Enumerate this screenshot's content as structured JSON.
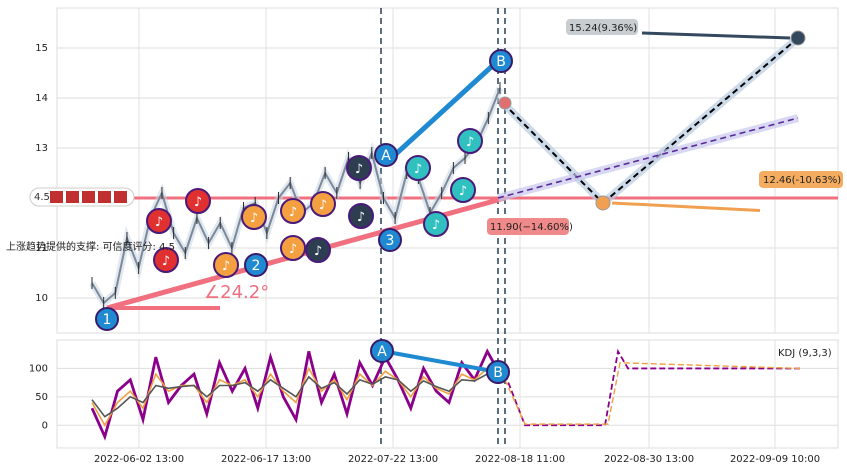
{
  "chart_data": [
    {
      "type": "line",
      "panel": "price",
      "y_ticks": [
        "10",
        "11",
        "12",
        "13",
        "14",
        "15"
      ],
      "ylim": [
        9.3,
        15.8
      ],
      "grid": true,
      "support_label": "上涨趋势提供的支撑: 可信度评分: 4.5",
      "rating_badge": "4.5",
      "angle_label": "∠24.2°",
      "vertical_event_lines": [
        "2022-07-22 13:00",
        "2022-08-18 11:00"
      ],
      "forecast_labels": {
        "upper": "15.24(9.36%)",
        "middle": "12.46(-10.63%)",
        "lower": "11.90(−14.60%)"
      },
      "pattern_markers": [
        "1",
        "2",
        "3",
        "A",
        "B"
      ],
      "price_series": {
        "name": "",
        "x": [
          "2022-05-26",
          "2022-05-30",
          "2022-06-01",
          "2022-06-03",
          "2022-06-06",
          "2022-06-08",
          "2022-06-10",
          "2022-06-13",
          "2022-06-15",
          "2022-06-17",
          "2022-06-20",
          "2022-06-22",
          "2022-06-24",
          "2022-06-27",
          "2022-06-29",
          "2022-07-01",
          "2022-07-04",
          "2022-07-06",
          "2022-07-08",
          "2022-07-11",
          "2022-07-13",
          "2022-07-15",
          "2022-07-18",
          "2022-07-20",
          "2022-07-22",
          "2022-07-25",
          "2022-07-27",
          "2022-07-29",
          "2022-08-01",
          "2022-08-03",
          "2022-08-05",
          "2022-08-08",
          "2022-08-10",
          "2022-08-12",
          "2022-08-15",
          "2022-08-17"
        ],
        "values": [
          10.3,
          9.9,
          10.1,
          11.2,
          10.6,
          11.6,
          12.1,
          11.3,
          10.9,
          11.6,
          11.1,
          11.5,
          11.0,
          11.8,
          11.9,
          11.3,
          12.0,
          12.3,
          11.7,
          11.9,
          12.5,
          12.1,
          12.8,
          12.3,
          12.9,
          12.0,
          11.6,
          12.5,
          12.4,
          11.7,
          12.1,
          12.6,
          12.8,
          13.1,
          13.6,
          14.2
        ]
      }
    },
    {
      "type": "line",
      "panel": "indicator",
      "legend": "KDJ (9,3,3)",
      "y_ticks": [
        "0",
        "50",
        "100"
      ],
      "ylim": [
        -40,
        150
      ],
      "x_ticks": [
        "2022-06-02 13:00",
        "2022-06-17 13:00",
        "2022-07-22 13:00",
        "2022-08-18 11:00",
        "2022-08-30 13:00",
        "2022-09-09 10:00"
      ],
      "series": [
        {
          "name": "",
          "color": "#8b008b",
          "values": [
            30,
            -20,
            60,
            80,
            10,
            120,
            40,
            70,
            90,
            20,
            110,
            60,
            100,
            30,
            120,
            50,
            10,
            130,
            40,
            90,
            20,
            110,
            70,
            120,
            80,
            30,
            100,
            60,
            40,
            110,
            80,
            130,
            90
          ]
        },
        {
          "name": "",
          "color": "#f0a040",
          "values": [
            40,
            0,
            40,
            60,
            30,
            90,
            60,
            70,
            70,
            40,
            80,
            70,
            80,
            50,
            90,
            60,
            40,
            100,
            60,
            80,
            45,
            90,
            70,
            95,
            80,
            50,
            85,
            65,
            55,
            90,
            80,
            100,
            90
          ]
        },
        {
          "name": "",
          "color": "#555555",
          "values": [
            45,
            15,
            30,
            50,
            40,
            70,
            65,
            68,
            70,
            50,
            70,
            70,
            75,
            60,
            80,
            65,
            50,
            85,
            65,
            75,
            55,
            80,
            72,
            85,
            80,
            60,
            78,
            68,
            60,
            80,
            78,
            90,
            88
          ]
        }
      ],
      "forecast_value": 100
    }
  ],
  "colors": {
    "price_line": "#1f2d3d",
    "support": "#f07080",
    "forecast": "#2c3e50",
    "marker_blue": "#1f8ad2",
    "marker_orange": "#f4a040",
    "marker_red": "#e03030",
    "marker_dark": "#2c3e50",
    "marker_teal": "#30c0c0"
  }
}
